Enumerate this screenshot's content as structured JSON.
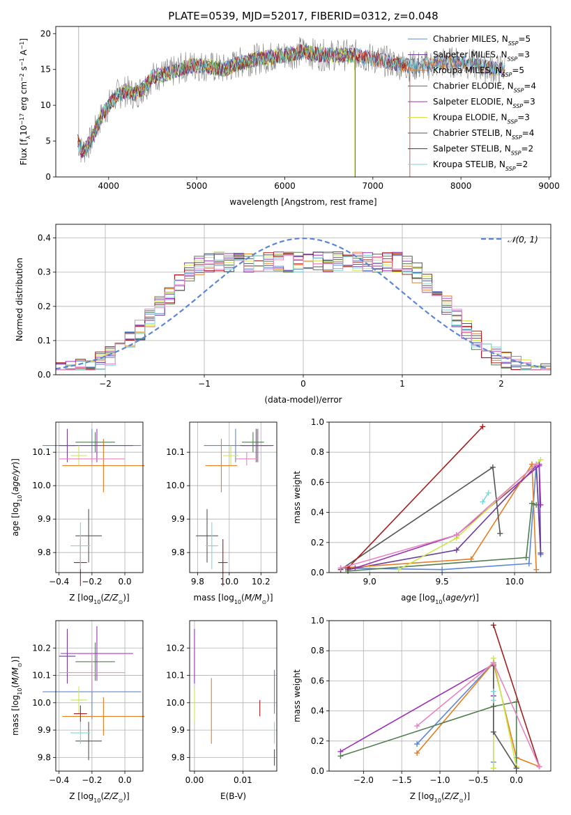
{
  "figure_title": "PLATE=0539, MJD=52017, FIBERID=0312, z=0.048",
  "colors": {
    "chabrier_miles": "#5b86d8",
    "salpeter_miles": "#6a3d9a",
    "kroupa_miles": "#e67e22",
    "chabrier_elodie": "#4f7d4f",
    "salpeter_elodie": "#9b30b5",
    "kroupa_elodie": "#cbe84a",
    "chabrier_stelib": "#555555",
    "salpeter_stelib": "#a61c1c",
    "kroupa_stelib": "#7fd6d6",
    "pink": "#e884c4",
    "data": "#808080"
  },
  "chart_data": [
    {
      "id": "spectrum",
      "type": "line",
      "xlabel": "wavelength [Angstrom, rest frame]",
      "ylabel": "Flux [f_λ10^-17 erg cm^-2 s^-1 A^-1]",
      "xlim": [
        3400,
        9020
      ],
      "ylim": [
        0,
        21
      ],
      "xticks": [
        4000,
        5000,
        6000,
        7000,
        8000,
        9000
      ],
      "yticks": [
        0,
        5,
        10,
        15,
        20
      ],
      "legend": [
        {
          "label": "Chabrier MILES, N_SSP=5",
          "color": "#5b86d8"
        },
        {
          "label": "Salpeter MILES, N_SSP=3",
          "color": "#6a3d9a"
        },
        {
          "label": "Kroupa MILES, N_SSP=5",
          "color": "#e67e22"
        },
        {
          "label": "Chabrier ELODIE, N_SSP=4",
          "color": "#4f7d4f"
        },
        {
          "label": "Salpeter ELODIE, N_SSP=3",
          "color": "#9b30b5"
        },
        {
          "label": "Kroupa ELODIE, N_SSP=3",
          "color": "#cbe84a"
        },
        {
          "label": "Chabrier STELIB, N_SSP=4",
          "color": "#555555"
        },
        {
          "label": "Salpeter STELIB, N_SSP=2",
          "color": "#a61c1c"
        },
        {
          "label": "Kroupa STELIB, N_SSP=2",
          "color": "#7fd6d6"
        }
      ],
      "continuum": [
        [
          3650,
          5
        ],
        [
          3700,
          3.5
        ],
        [
          3800,
          5
        ],
        [
          3900,
          8
        ],
        [
          4000,
          10
        ],
        [
          4100,
          11.5
        ],
        [
          4200,
          12
        ],
        [
          4300,
          11.5
        ],
        [
          4400,
          12.5
        ],
        [
          4500,
          14
        ],
        [
          4700,
          14.5
        ],
        [
          4900,
          15.5
        ],
        [
          5100,
          15.5
        ],
        [
          5300,
          15
        ],
        [
          5500,
          16
        ],
        [
          5700,
          16.5
        ],
        [
          6000,
          17
        ],
        [
          6200,
          17.5
        ],
        [
          6400,
          17
        ],
        [
          6600,
          17
        ],
        [
          6800,
          17
        ],
        [
          7000,
          16.5
        ],
        [
          7200,
          16
        ],
        [
          7400,
          15.5
        ],
        [
          7600,
          15.5
        ],
        [
          7800,
          16
        ],
        [
          8000,
          16
        ],
        [
          8200,
          15.5
        ],
        [
          8400,
          15
        ],
        [
          8500,
          15
        ]
      ]
    },
    {
      "id": "residuals",
      "type": "line",
      "xlabel": "(data-model)/error",
      "ylabel": "Normed distribution",
      "xlim": [
        -2.5,
        2.5
      ],
      "ylim": [
        0,
        0.44
      ],
      "xticks": [
        -2,
        -1,
        0,
        1,
        2
      ],
      "yticks": [
        0.0,
        0.1,
        0.2,
        0.3,
        0.4
      ],
      "legend": "N(0,1)",
      "gaussian": {
        "mu": 0,
        "sigma": 1
      }
    },
    {
      "id": "age_vs_Z",
      "type": "scatter",
      "xlabel": "Z [log10(Z/Z⊙)]",
      "ylabel": "age [log10(age/yr)]",
      "xlim": [
        -0.42,
        0.11
      ],
      "ylim": [
        9.74,
        10.19
      ],
      "xticks": [
        -0.4,
        -0.2,
        0.0
      ],
      "yticks": [
        9.8,
        9.9,
        10.0,
        10.1
      ],
      "points": [
        {
          "x": -0.2,
          "xerr": 0.3,
          "y": 10.12,
          "yerr": 0.05,
          "color": "#5b86d8"
        },
        {
          "x": -0.35,
          "xerr": 0.05,
          "y": 10.12,
          "yerr": 0.05,
          "color": "#6a3d9a"
        },
        {
          "x": -0.13,
          "xerr": 0.25,
          "y": 10.06,
          "yerr": 0.08,
          "color": "#e67e22"
        },
        {
          "x": -0.18,
          "xerr": 0.12,
          "y": 10.13,
          "yerr": 0.03,
          "color": "#4f7d4f"
        },
        {
          "x": -0.17,
          "xerr": 0.22,
          "y": 10.12,
          "yerr": 0.05,
          "color": "#9b30b5"
        },
        {
          "x": -0.28,
          "xerr": 0.05,
          "y": 10.09,
          "yerr": 0.03,
          "color": "#cbe84a"
        },
        {
          "x": -0.22,
          "xerr": 0.08,
          "y": 9.85,
          "yerr": 0.08,
          "color": "#555555"
        },
        {
          "x": -0.27,
          "xerr": 0.04,
          "y": 9.77,
          "yerr": 0.07,
          "color": "#a61c1c"
        },
        {
          "x": -0.27,
          "xerr": 0.06,
          "y": 9.82,
          "yerr": 0.07,
          "color": "#7fd6d6"
        },
        {
          "x": -0.2,
          "xerr": 0.2,
          "y": 10.08,
          "yerr": 0.02,
          "color": "#e884c4"
        }
      ]
    },
    {
      "id": "age_vs_mass",
      "type": "scatter",
      "xlabel": "mass [log10(M/M⊙)]",
      "ylabel": "",
      "xlim": [
        9.75,
        10.3
      ],
      "ylim": [
        9.74,
        10.19
      ],
      "xticks": [
        9.8,
        10.0,
        10.2
      ],
      "yticks": [
        9.8,
        9.9,
        10.0,
        10.1
      ],
      "points": [
        {
          "x": 10.04,
          "xerr": 0.2,
          "y": 10.12,
          "yerr": 0.05,
          "color": "#5b86d8"
        },
        {
          "x": 10.17,
          "xerr": 0.1,
          "y": 10.12,
          "yerr": 0.05,
          "color": "#6a3d9a"
        },
        {
          "x": 9.95,
          "xerr": 0.1,
          "y": 10.06,
          "yerr": 0.08,
          "color": "#e67e22"
        },
        {
          "x": 10.15,
          "xerr": 0.07,
          "y": 10.13,
          "yerr": 0.03,
          "color": "#4f7d4f"
        },
        {
          "x": 10.18,
          "xerr": 0.1,
          "y": 10.12,
          "yerr": 0.05,
          "color": "#9b30b5"
        },
        {
          "x": 10.01,
          "xerr": 0.05,
          "y": 10.09,
          "yerr": 0.03,
          "color": "#cbe84a"
        },
        {
          "x": 9.86,
          "xerr": 0.07,
          "y": 9.85,
          "yerr": 0.08,
          "color": "#555555"
        },
        {
          "x": 9.96,
          "xerr": 0.03,
          "y": 9.77,
          "yerr": 0.07,
          "color": "#a61c1c"
        },
        {
          "x": 9.89,
          "xerr": 0.04,
          "y": 9.82,
          "yerr": 0.07,
          "color": "#7fd6d6"
        },
        {
          "x": 10.11,
          "xerr": 0.07,
          "y": 10.08,
          "yerr": 0.02,
          "color": "#e884c4"
        }
      ]
    },
    {
      "id": "weight_vs_age",
      "type": "line",
      "xlabel": "age [log10(age/yr)]",
      "ylabel": "mass weight",
      "xlim": [
        8.72,
        10.25
      ],
      "ylim": [
        0,
        1
      ],
      "xticks": [
        9.0,
        9.5,
        10.0
      ],
      "yticks": [
        0.0,
        0.2,
        0.4,
        0.6,
        0.8,
        1.0
      ],
      "series": [
        {
          "color": "#5b86d8",
          "x": [
            8.8,
            9.5,
            10.1,
            10.15,
            10.18
          ],
          "y": [
            0.03,
            0.02,
            0.06,
            0.72,
            0.12
          ]
        },
        {
          "color": "#6a3d9a",
          "x": [
            8.85,
            9.6,
            10.15,
            10.18,
            10.17
          ],
          "y": [
            0.02,
            0.15,
            0.71,
            0.13,
            0.72
          ]
        },
        {
          "color": "#e67e22",
          "x": [
            8.8,
            9.7,
            10.12,
            10.15
          ],
          "y": [
            0.03,
            0.09,
            0.72,
            0.02
          ]
        },
        {
          "color": "#4f7d4f",
          "x": [
            8.85,
            10.08,
            10.12,
            10.15
          ],
          "y": [
            0.01,
            0.1,
            0.46,
            0.45
          ]
        },
        {
          "color": "#9b30b5",
          "x": [
            8.9,
            9.6,
            10.17,
            10.18
          ],
          "y": [
            0.03,
            0.25,
            0.71,
            0.45
          ]
        },
        {
          "color": "#cbe84a",
          "x": [
            9.2,
            9.6,
            10.18
          ],
          "y": [
            0.02,
            0.23,
            0.75
          ]
        },
        {
          "color": "#555555",
          "x": [
            8.8,
            9.85,
            9.9
          ],
          "y": [
            0.02,
            0.7,
            0.26
          ]
        },
        {
          "color": "#a61c1c",
          "x": [
            8.85,
            9.78
          ],
          "y": [
            0.03,
            0.97
          ]
        },
        {
          "color": "#7fd6d6",
          "x": [
            9.78,
            9.82
          ],
          "y": [
            0.47,
            0.53
          ]
        },
        {
          "color": "#e884c4",
          "x": [
            8.8,
            9.6,
            10.15
          ],
          "y": [
            0.03,
            0.25,
            0.72
          ]
        }
      ]
    },
    {
      "id": "mass_vs_Z",
      "type": "scatter",
      "xlabel": "Z [log10(Z/Z⊙)]",
      "ylabel": "mass [log10(M/M⊙)]",
      "xlim": [
        -0.42,
        0.11
      ],
      "ylim": [
        9.75,
        10.3
      ],
      "xticks": [
        -0.4,
        -0.2,
        0.0
      ],
      "yticks": [
        9.8,
        9.9,
        10.0,
        10.1,
        10.2
      ],
      "points": [
        {
          "x": -0.2,
          "xerr": 0.3,
          "y": 10.04,
          "yerr": 0.1,
          "color": "#5b86d8"
        },
        {
          "x": -0.35,
          "xerr": 0.05,
          "y": 10.17,
          "yerr": 0.1,
          "color": "#6a3d9a"
        },
        {
          "x": -0.13,
          "xerr": 0.25,
          "y": 9.95,
          "yerr": 0.07,
          "color": "#e67e22"
        },
        {
          "x": -0.18,
          "xerr": 0.12,
          "y": 10.15,
          "yerr": 0.07,
          "color": "#4f7d4f"
        },
        {
          "x": -0.17,
          "xerr": 0.22,
          "y": 10.18,
          "yerr": 0.1,
          "color": "#9b30b5"
        },
        {
          "x": -0.28,
          "xerr": 0.05,
          "y": 10.01,
          "yerr": 0.05,
          "color": "#cbe84a"
        },
        {
          "x": -0.22,
          "xerr": 0.08,
          "y": 9.86,
          "yerr": 0.07,
          "color": "#555555"
        },
        {
          "x": -0.27,
          "xerr": 0.04,
          "y": 9.96,
          "yerr": 0.03,
          "color": "#a61c1c"
        },
        {
          "x": -0.27,
          "xerr": 0.06,
          "y": 9.89,
          "yerr": 0.04,
          "color": "#7fd6d6"
        },
        {
          "x": -0.2,
          "xerr": 0.2,
          "y": 10.11,
          "yerr": 0.07,
          "color": "#e884c4"
        }
      ]
    },
    {
      "id": "mass_vs_ebv",
      "type": "scatter",
      "xlabel": "E(B-V)",
      "ylabel": "",
      "xlim": [
        -0.001,
        0.017
      ],
      "ylim": [
        9.75,
        10.3
      ],
      "xticks": [
        0.0,
        0.01
      ],
      "yticks": [
        9.8,
        9.9,
        10.0,
        10.1,
        10.2
      ],
      "points": [
        {
          "x": 0.0165,
          "y": 10.04,
          "yerr": 0.08,
          "color": "#5b86d8"
        },
        {
          "x": 0.0,
          "y": 10.17,
          "yerr": 0.1,
          "color": "#9b30b5"
        },
        {
          "x": 0.0035,
          "y": 9.97,
          "yerr": 0.12,
          "color": "#e67e22"
        },
        {
          "x": 0.0,
          "y": 9.99,
          "yerr": 0.06,
          "color": "#cbe84a"
        },
        {
          "x": 0.0165,
          "y": 9.8,
          "yerr": 0.03,
          "color": "#555555"
        },
        {
          "x": 0.0135,
          "y": 9.98,
          "yerr": 0.03,
          "color": "#a61c1c"
        },
        {
          "x": 0.0165,
          "y": 9.89,
          "yerr": 0.04,
          "color": "#7fd6d6"
        }
      ]
    },
    {
      "id": "weight_vs_Z",
      "type": "line",
      "xlabel": "Z [log10(Z/Z⊙)]",
      "ylabel": "mass weight",
      "xlim": [
        -2.45,
        0.45
      ],
      "ylim": [
        0,
        1
      ],
      "xticks": [
        -2.0,
        -1.5,
        -1.0,
        -0.5,
        0.0
      ],
      "yticks": [
        0.0,
        0.2,
        0.4,
        0.6,
        0.8,
        1.0
      ],
      "series": [
        {
          "color": "#5b86d8",
          "x": [
            -1.3,
            -0.3,
            -0.3,
            -0.3
          ],
          "y": [
            0.18,
            0.72,
            0.06,
            0.02
          ]
        },
        {
          "color": "#9b30b5",
          "x": [
            -2.3,
            -0.3,
            -0.3
          ],
          "y": [
            0.13,
            0.71,
            0.5
          ]
        },
        {
          "color": "#e67e22",
          "x": [
            -1.3,
            -0.3,
            0.0,
            0.3
          ],
          "y": [
            0.12,
            0.72,
            0.09,
            0.03
          ]
        },
        {
          "color": "#4f7d4f",
          "x": [
            -2.3,
            -0.3,
            0.0,
            0.0
          ],
          "y": [
            0.1,
            0.43,
            0.46,
            0.02
          ]
        },
        {
          "color": "#cbe84a",
          "x": [
            -0.3,
            -0.3,
            0.0
          ],
          "y": [
            0.02,
            0.75,
            0.03
          ]
        },
        {
          "color": "#555555",
          "x": [
            -0.3,
            -0.3,
            0.0
          ],
          "y": [
            0.7,
            0.26,
            0.02
          ]
        },
        {
          "color": "#a61c1c",
          "x": [
            -0.3,
            0.3
          ],
          "y": [
            0.97,
            0.03
          ]
        },
        {
          "color": "#7fd6d6",
          "x": [
            -0.3,
            -0.3
          ],
          "y": [
            0.47,
            0.53
          ]
        },
        {
          "color": "#e884c4",
          "x": [
            -1.3,
            -0.3,
            0.3
          ],
          "y": [
            0.3,
            0.72,
            0.03
          ]
        }
      ]
    }
  ]
}
